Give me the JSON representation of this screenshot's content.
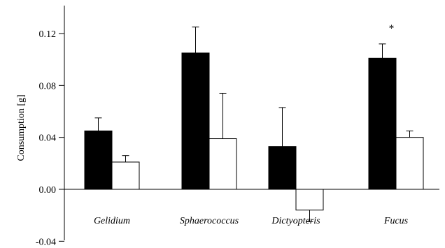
{
  "chart_data": {
    "type": "bar",
    "ylabel": "Consumption [g]",
    "ylim": [
      -0.04,
      0.14
    ],
    "yticks": [
      "-0.04",
      "0.00",
      "0.04",
      "0.08",
      "0.12"
    ],
    "categories": [
      "Gelidium",
      "Sphaerococcus",
      "Dictyopteris",
      "Fucus"
    ],
    "series": [
      {
        "fill": "#000000",
        "values": [
          0.045,
          0.105,
          0.033,
          0.101
        ],
        "errors": [
          0.01,
          0.02,
          0.03,
          0.011
        ]
      },
      {
        "fill": "#ffffff",
        "values": [
          0.021,
          0.039,
          -0.016,
          0.04
        ],
        "errors": [
          0.005,
          0.035,
          0.009,
          0.005
        ]
      }
    ],
    "annotations": [
      {
        "category_index": 3,
        "series_index": 0,
        "text": "*"
      }
    ]
  }
}
